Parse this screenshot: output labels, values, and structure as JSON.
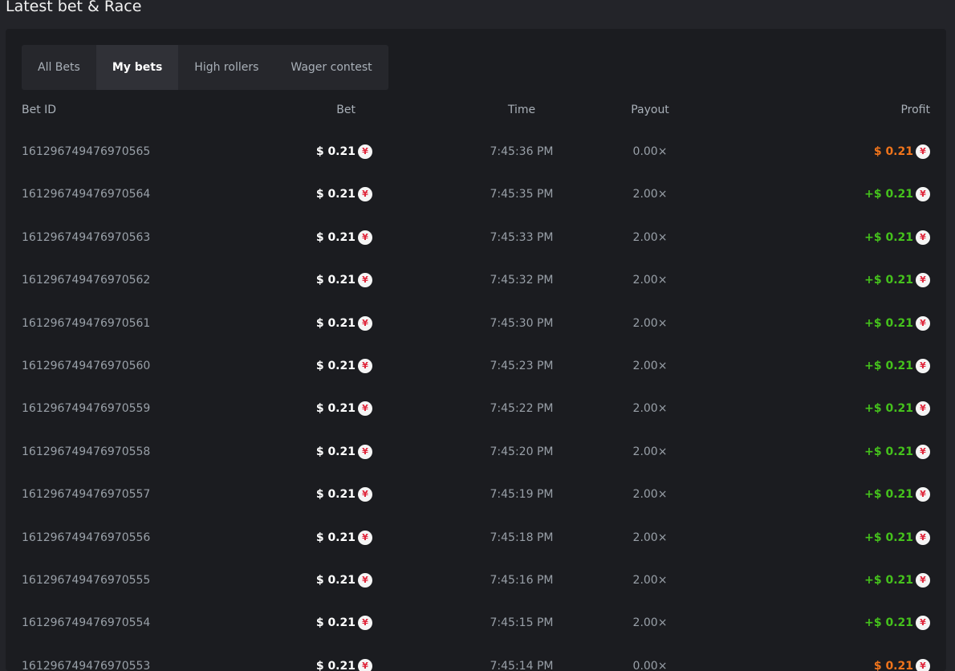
{
  "header": {
    "title": "Latest bet & Race"
  },
  "tabs": {
    "items": [
      "All Bets",
      "My bets",
      "High rollers",
      "Wager contest"
    ],
    "active": 1
  },
  "currency_icon": "¥",
  "table": {
    "columns": [
      "Bet ID",
      "Bet",
      "Time",
      "Payout",
      "Profit"
    ],
    "rows": [
      {
        "id": "161296749476970565",
        "bet": "$ 0.21",
        "time": "7:45:36 PM",
        "payout": "0.00×",
        "profit": "$ 0.21",
        "profit_color": "#f0741b"
      },
      {
        "id": "161296749476970564",
        "bet": "$ 0.21",
        "time": "7:45:35 PM",
        "payout": "2.00×",
        "profit": "+$ 0.21",
        "profit_color": "#45c21c"
      },
      {
        "id": "161296749476970563",
        "bet": "$ 0.21",
        "time": "7:45:33 PM",
        "payout": "2.00×",
        "profit": "+$ 0.21",
        "profit_color": "#45c21c"
      },
      {
        "id": "161296749476970562",
        "bet": "$ 0.21",
        "time": "7:45:32 PM",
        "payout": "2.00×",
        "profit": "+$ 0.21",
        "profit_color": "#45c21c"
      },
      {
        "id": "161296749476970561",
        "bet": "$ 0.21",
        "time": "7:45:30 PM",
        "payout": "2.00×",
        "profit": "+$ 0.21",
        "profit_color": "#45c21c"
      },
      {
        "id": "161296749476970560",
        "bet": "$ 0.21",
        "time": "7:45:23 PM",
        "payout": "2.00×",
        "profit": "+$ 0.21",
        "profit_color": "#45c21c"
      },
      {
        "id": "161296749476970559",
        "bet": "$ 0.21",
        "time": "7:45:22 PM",
        "payout": "2.00×",
        "profit": "+$ 0.21",
        "profit_color": "#45c21c"
      },
      {
        "id": "161296749476970558",
        "bet": "$ 0.21",
        "time": "7:45:20 PM",
        "payout": "2.00×",
        "profit": "+$ 0.21",
        "profit_color": "#45c21c"
      },
      {
        "id": "161296749476970557",
        "bet": "$ 0.21",
        "time": "7:45:19 PM",
        "payout": "2.00×",
        "profit": "+$ 0.21",
        "profit_color": "#45c21c"
      },
      {
        "id": "161296749476970556",
        "bet": "$ 0.21",
        "time": "7:45:18 PM",
        "payout": "2.00×",
        "profit": "+$ 0.21",
        "profit_color": "#45c21c"
      },
      {
        "id": "161296749476970555",
        "bet": "$ 0.21",
        "time": "7:45:16 PM",
        "payout": "2.00×",
        "profit": "+$ 0.21",
        "profit_color": "#45c21c"
      },
      {
        "id": "161296749476970554",
        "bet": "$ 0.21",
        "time": "7:45:15 PM",
        "payout": "2.00×",
        "profit": "+$ 0.21",
        "profit_color": "#45c21c"
      },
      {
        "id": "161296749476970553",
        "bet": "$ 0.21",
        "time": "7:45:14 PM",
        "payout": "0.00×",
        "profit": "$ 0.21",
        "profit_color": "#f0741b"
      }
    ]
  }
}
